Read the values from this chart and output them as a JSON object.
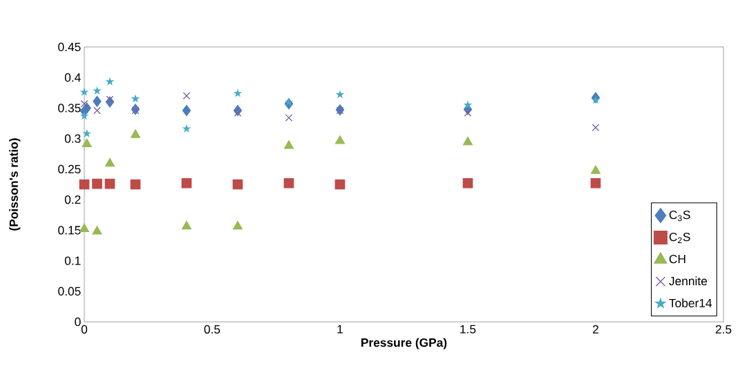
{
  "chart_data": {
    "type": "scatter",
    "xlabel": "Pressure (GPa)",
    "ylabel": "(Poisson's ratio)",
    "xlim": [
      0,
      2.5
    ],
    "xticks": [
      0,
      0.5,
      1,
      1.5,
      2,
      2.5
    ],
    "ylim": [
      0,
      0.45
    ],
    "yticks": [
      0,
      0.05,
      0.1,
      0.15,
      0.2,
      0.25,
      0.3,
      0.35,
      0.4,
      0.45
    ],
    "grid": false,
    "legend": "right",
    "series": [
      {
        "name": "C$_{3}$S",
        "color": "#4a7ebb",
        "marker": "diamond",
        "x": [
          0,
          0.01,
          0.05,
          0.1,
          0.2,
          0.4,
          0.6,
          0.8,
          1,
          1.5,
          2
        ],
        "values": [
          0.345,
          0.35,
          0.361,
          0.36,
          0.348,
          0.346,
          0.346,
          0.357,
          0.347,
          0.348,
          0.367
        ]
      },
      {
        "name": "C$_{2}$S",
        "color": "#be4b48",
        "marker": "square",
        "x": [
          0,
          0.05,
          0.1,
          0.2,
          0.4,
          0.6,
          0.8,
          1,
          1.5,
          2
        ],
        "values": [
          0.225,
          0.226,
          0.226,
          0.225,
          0.227,
          0.225,
          0.227,
          0.225,
          0.227,
          0.227
        ]
      },
      {
        "name": "CH",
        "color": "#98b954",
        "marker": "triangle",
        "x": [
          0,
          0.01,
          0.05,
          0.1,
          0.2,
          0.4,
          0.6,
          0.8,
          1,
          1.5,
          2
        ],
        "values": [
          0.152,
          0.291,
          0.148,
          0.259,
          0.306,
          0.156,
          0.156,
          0.288,
          0.296,
          0.294,
          0.247
        ]
      },
      {
        "name": "Jennite",
        "color": "#7d60a0",
        "marker": "cross",
        "x": [
          0,
          0.05,
          0.1,
          0.2,
          0.4,
          0.6,
          0.8,
          1,
          1.5,
          2
        ],
        "values": [
          0.357,
          0.346,
          0.364,
          0.346,
          0.37,
          0.342,
          0.334,
          0.346,
          0.342,
          0.318
        ]
      },
      {
        "name": "Tober14",
        "color": "#46aac5",
        "marker": "star",
        "x": [
          0,
          0,
          0.01,
          0.05,
          0.1,
          0.2,
          0.4,
          0.6,
          0.8,
          1,
          1.5,
          2
        ],
        "values": [
          0.376,
          0.337,
          0.308,
          0.378,
          0.393,
          0.365,
          0.316,
          0.374,
          0.359,
          0.372,
          0.355,
          0.363
        ]
      }
    ]
  }
}
